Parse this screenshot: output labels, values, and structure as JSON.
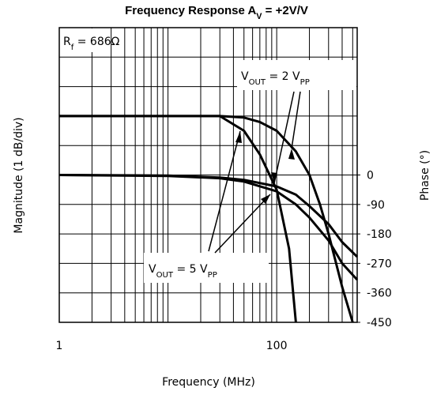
{
  "chart_data": {
    "type": "line",
    "title": [
      {
        "text": "Frequency Response A",
        "sub": false
      },
      {
        "text": "V",
        "sub": true
      },
      {
        "text": " = +2V/V",
        "sub": false
      }
    ],
    "xlabel": "Frequency (MHz)",
    "ylabel": "Magnitude (1 dB/div)",
    "y2label": "Phase (°)",
    "xscale": "log",
    "xlim": [
      1,
      550
    ],
    "xticks": [
      1,
      100
    ],
    "xgrid": [
      1,
      2,
      3,
      4,
      5,
      6,
      7,
      8,
      9,
      10,
      20,
      30,
      40,
      50,
      60,
      70,
      80,
      90,
      100,
      200,
      300,
      400,
      500
    ],
    "ylim": [
      -8,
      2
    ],
    "yticks": [
      2,
      1,
      0,
      -1,
      -2,
      -3,
      -4,
      -5,
      -6,
      -7,
      -8
    ],
    "y2lim": [
      -450,
      450
    ],
    "y2ticks": [
      0,
      -90,
      -180,
      -270,
      -360,
      -450
    ],
    "grid": true,
    "color": "#000000",
    "series": [
      {
        "x": [
          1,
          30,
          50,
          70,
          100,
          150,
          200,
          250,
          300,
          400,
          500
        ],
        "values": [
          -1,
          -1,
          -1.05,
          -1.2,
          -1.5,
          -2.2,
          -3,
          -4,
          -5,
          -6.8,
          -8
        ]
      },
      {
        "x": [
          1,
          30,
          50,
          70,
          100,
          130,
          150
        ],
        "values": [
          -1,
          -1,
          -1.5,
          -2.3,
          -3.5,
          -5.5,
          -8
        ]
      },
      {
        "x": [
          1,
          10,
          30,
          50,
          100,
          150,
          200,
          300,
          400,
          550
        ],
        "values": [
          0,
          -2,
          -8,
          -15,
          -35,
          -60,
          -95,
          -150,
          -205,
          -250
        ],
        "axis": "y2"
      },
      {
        "x": [
          1,
          10,
          30,
          50,
          100,
          150,
          200,
          300,
          400,
          550
        ],
        "values": [
          0,
          -3,
          -10,
          -20,
          -50,
          -90,
          -130,
          -200,
          -270,
          -320
        ],
        "axis": "y2"
      }
    ],
    "annotations": [
      {
        "parts": [
          {
            "text": "R",
            "sub": false
          },
          {
            "text": "f",
            "sub": true
          },
          {
            "text": " = 686Ω",
            "sub": false
          }
        ]
      },
      {
        "parts": [
          {
            "text": "V",
            "sub": false
          },
          {
            "text": "OUT",
            "sub": true
          },
          {
            "text": " = 2 V",
            "sub": false
          },
          {
            "text": "PP",
            "sub": true
          }
        ]
      },
      {
        "parts": [
          {
            "text": "V",
            "sub": false
          },
          {
            "text": "OUT",
            "sub": true
          },
          {
            "text": " = 5 V",
            "sub": false
          },
          {
            "text": "PP",
            "sub": true
          }
        ]
      }
    ]
  }
}
